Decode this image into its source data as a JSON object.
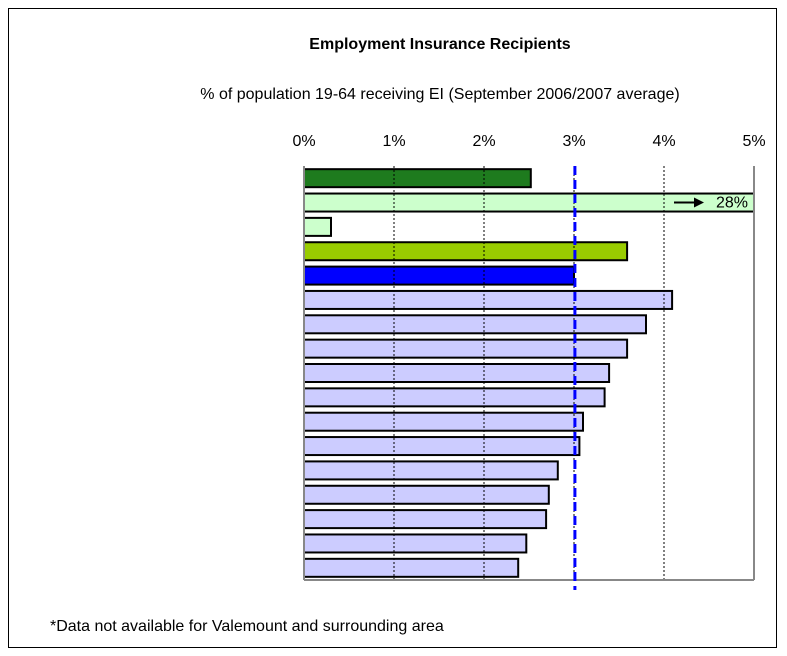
{
  "chart_data": {
    "type": "barh",
    "title": "Employment Insurance Recipients",
    "subtitle": "% of population  19-64 receiving EI (September 2006/2007 average)",
    "footnote": "*Data not available  for Valemount and surrounding area",
    "categories": [
      null,
      null,
      null,
      null,
      null,
      null,
      null,
      null,
      null,
      null,
      null,
      null,
      null,
      null,
      null,
      null,
      null
    ],
    "values": [
      2.52,
      28,
      0.3,
      3.59,
      3.0,
      4.09,
      3.8,
      3.59,
      3.39,
      3.34,
      3.1,
      3.06,
      2.82,
      2.72,
      2.69,
      2.47,
      2.38
    ],
    "value_labels": [
      null,
      "28%",
      null,
      null,
      null,
      null,
      null,
      null,
      null,
      null,
      null,
      null,
      null,
      null,
      null,
      null,
      null
    ],
    "colors": [
      "#1e7b1e",
      "#ccffcc",
      "#ccffcc",
      "#99cc00",
      "#0000ff",
      "#ccccff",
      "#ccccff",
      "#ccccff",
      "#ccccff",
      "#ccccff",
      "#ccccff",
      "#ccccff",
      "#ccccff",
      "#ccccff",
      "#ccccff",
      "#ccccff",
      "#ccccff"
    ],
    "xlim": [
      0,
      5
    ],
    "xticks": [
      {
        "value": 0,
        "label": "0%"
      },
      {
        "value": 1,
        "label": "1%"
      },
      {
        "value": 2,
        "label": "2%"
      },
      {
        "value": 3,
        "label": "3%"
      },
      {
        "value": 4,
        "label": "4%"
      },
      {
        "value": 5,
        "label": "5%"
      }
    ],
    "reference_line": {
      "value": 3.01,
      "color": "#0000ff"
    },
    "grid": true
  }
}
